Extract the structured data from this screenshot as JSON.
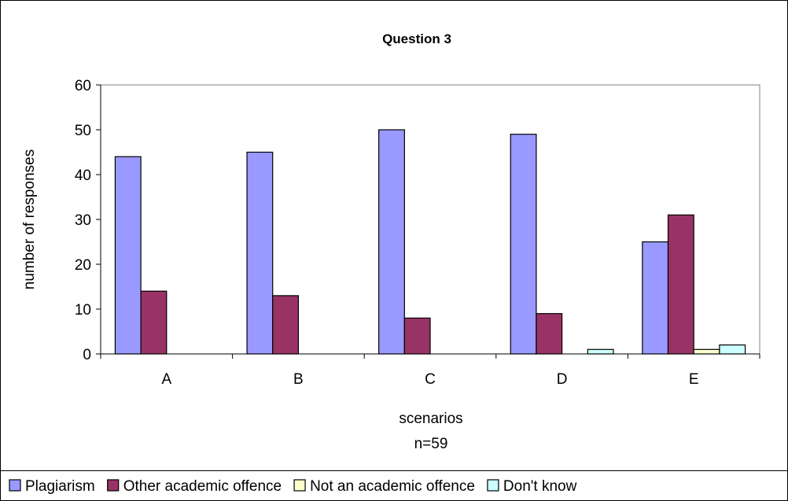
{
  "chart_data": {
    "type": "bar",
    "title": "Question 3",
    "xlabel": "scenarios",
    "xlabel_sub": "n=59",
    "ylabel": "number of responses",
    "categories": [
      "A",
      "B",
      "C",
      "D",
      "E"
    ],
    "ylim": [
      0,
      60
    ],
    "yticks": [
      0,
      10,
      20,
      30,
      40,
      50,
      60
    ],
    "grid": false,
    "legend_position": "bottom",
    "series": [
      {
        "name": "Plagiarism",
        "color": "#9999ff",
        "values": [
          44,
          45,
          50,
          49,
          25
        ]
      },
      {
        "name": "Other academic offence",
        "color": "#993366",
        "values": [
          14,
          13,
          8,
          9,
          31
        ]
      },
      {
        "name": "Not an academic offence",
        "color": "#ffffcc",
        "values": [
          0,
          0,
          0,
          0,
          1
        ]
      },
      {
        "name": "Don't know",
        "color": "#ccffff",
        "values": [
          0,
          0,
          0,
          1,
          2
        ]
      }
    ]
  }
}
